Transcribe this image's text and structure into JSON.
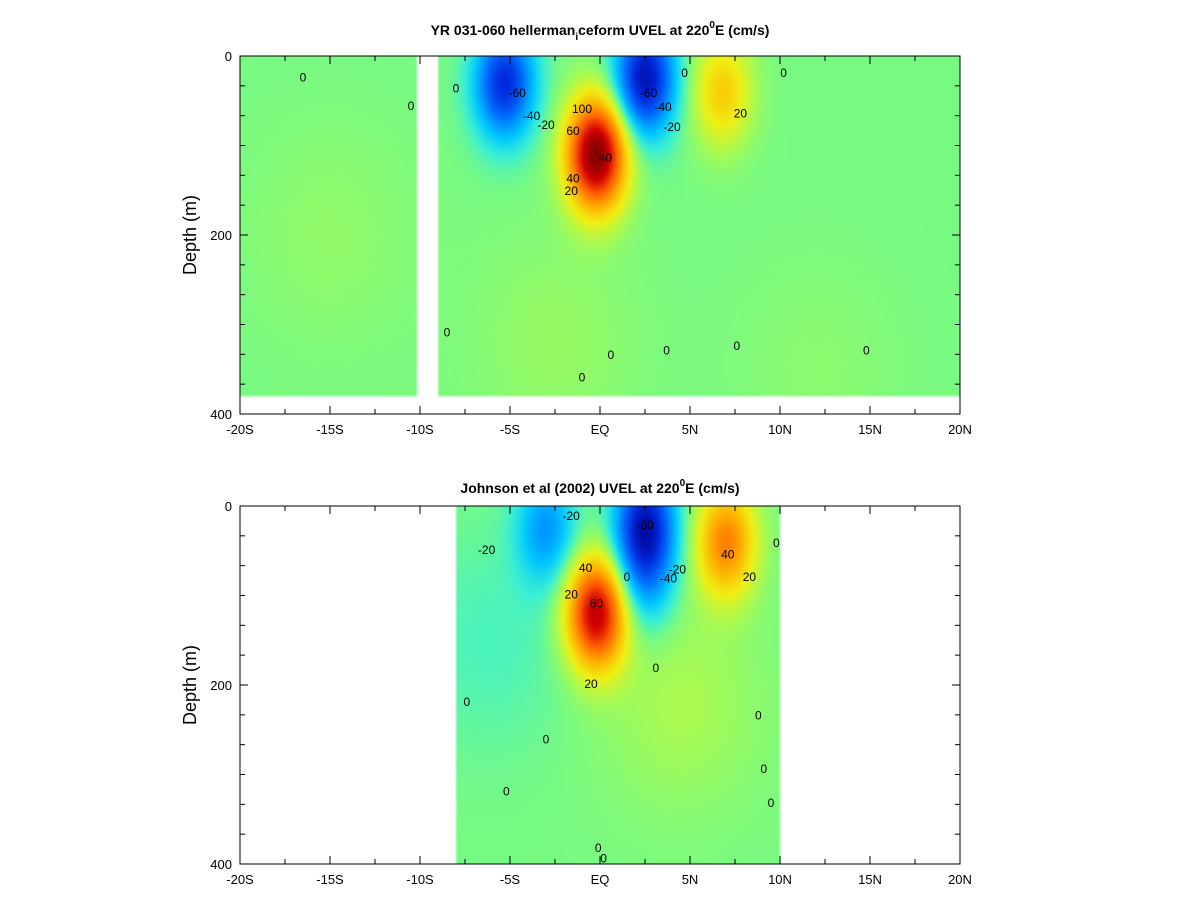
{
  "chart_data": [
    {
      "type": "heatmap",
      "title_main": "YR 031-060 hellerman",
      "title_sub": "i",
      "title_rest": "ceform UVEL at 220",
      "title_sup": "0",
      "title_end": "E (cm/s)",
      "ylabel": "Depth (m)",
      "xlim": [
        -20,
        20
      ],
      "ylim": [
        0,
        400
      ],
      "y_inverted": true,
      "xticks": [
        -20,
        -15,
        -10,
        -5,
        0,
        5,
        10,
        15,
        20
      ],
      "xtick_labels": [
        "-20S",
        "-15S",
        "-10S",
        "-5S",
        "EQ",
        "5N",
        "10N",
        "15N",
        "20N"
      ],
      "yticks": [
        0,
        200,
        400
      ],
      "ytick_labels": [
        "0",
        "200",
        "400"
      ],
      "data_xrange": [
        -20,
        20
      ],
      "data_depth_max": 380,
      "gap_xrange": [
        -10.2,
        -9.0
      ],
      "background_value": 0,
      "features": [
        {
          "x": -5.3,
          "z": 30,
          "value": -60
        },
        {
          "x": -0.2,
          "z": 110,
          "value": 100
        },
        {
          "x": 2.5,
          "z": 25,
          "value": -70
        },
        {
          "x": 6.8,
          "z": 40,
          "value": 30
        },
        {
          "x": -15.0,
          "z": 200,
          "value": 4
        },
        {
          "x": 12.0,
          "z": 350,
          "value": 3
        },
        {
          "x": -2.5,
          "z": 320,
          "value": 5
        }
      ],
      "contour_labels": [
        {
          "x": -16.5,
          "z": 25,
          "text": "0"
        },
        {
          "x": -10.5,
          "z": 57,
          "text": "0"
        },
        {
          "x": -8.0,
          "z": 37,
          "text": "0"
        },
        {
          "x": -4.6,
          "z": 42,
          "text": "-60"
        },
        {
          "x": -3.8,
          "z": 68,
          "text": "-40"
        },
        {
          "x": -3.0,
          "z": 78,
          "text": "-20"
        },
        {
          "x": -1.5,
          "z": 85,
          "text": "60"
        },
        {
          "x": -1.0,
          "z": 60,
          "text": "100"
        },
        {
          "x": 0.3,
          "z": 115,
          "text": "40"
        },
        {
          "x": -1.6,
          "z": 152,
          "text": "20"
        },
        {
          "x": -1.5,
          "z": 138,
          "text": "40"
        },
        {
          "x": 2.7,
          "z": 42,
          "text": "-60"
        },
        {
          "x": 3.5,
          "z": 58,
          "text": "-40"
        },
        {
          "x": 4.0,
          "z": 80,
          "text": "-20"
        },
        {
          "x": 4.7,
          "z": 20,
          "text": "0"
        },
        {
          "x": 7.8,
          "z": 65,
          "text": "20"
        },
        {
          "x": 10.2,
          "z": 20,
          "text": "0"
        },
        {
          "x": -8.5,
          "z": 310,
          "text": "0"
        },
        {
          "x": 0.6,
          "z": 335,
          "text": "0"
        },
        {
          "x": 3.7,
          "z": 330,
          "text": "0"
        },
        {
          "x": 7.6,
          "z": 325,
          "text": "0"
        },
        {
          "x": 14.8,
          "z": 330,
          "text": "0"
        },
        {
          "x": -1.0,
          "z": 360,
          "text": "0"
        }
      ]
    },
    {
      "type": "heatmap",
      "title_main": "Johnson et al (2002) UVEL at 220",
      "title_sub": "",
      "title_rest": "",
      "title_sup": "0",
      "title_end": "E (cm/s)",
      "ylabel": "Depth (m)",
      "xlim": [
        -20,
        20
      ],
      "ylim": [
        0,
        400
      ],
      "y_inverted": true,
      "xticks": [
        -20,
        -15,
        -10,
        -5,
        0,
        5,
        10,
        15,
        20
      ],
      "xtick_labels": [
        "-20S",
        "-15S",
        "-10S",
        "-5S",
        "EQ",
        "5N",
        "10N",
        "15N",
        "20N"
      ],
      "yticks": [
        0,
        200,
        400
      ],
      "ytick_labels": [
        "0",
        "200",
        "400"
      ],
      "data_xrange": [
        -8,
        10
      ],
      "data_depth_max": 400,
      "gap_xrange": null,
      "background_value": 0,
      "features": [
        {
          "x": -3.0,
          "z": 25,
          "value": -30
        },
        {
          "x": -0.2,
          "z": 120,
          "value": 85
        },
        {
          "x": 2.5,
          "z": 20,
          "value": -65
        },
        {
          "x": 7.0,
          "z": 40,
          "value": 50
        },
        {
          "x": 2.5,
          "z": 80,
          "value": -25
        },
        {
          "x": 4.5,
          "z": 220,
          "value": 8
        },
        {
          "x": -6.0,
          "z": 150,
          "value": -6
        }
      ],
      "contour_labels": [
        {
          "x": -1.6,
          "z": 12,
          "text": "-20"
        },
        {
          "x": -6.3,
          "z": 50,
          "text": "-20"
        },
        {
          "x": 2.5,
          "z": 22,
          "text": "-60"
        },
        {
          "x": 4.3,
          "z": 72,
          "text": "-20"
        },
        {
          "x": 3.8,
          "z": 82,
          "text": "-40"
        },
        {
          "x": 1.5,
          "z": 80,
          "text": "0"
        },
        {
          "x": -1.6,
          "z": 100,
          "text": "20"
        },
        {
          "x": -0.8,
          "z": 70,
          "text": "40"
        },
        {
          "x": -0.2,
          "z": 110,
          "text": "60"
        },
        {
          "x": -0.5,
          "z": 200,
          "text": "20"
        },
        {
          "x": 7.1,
          "z": 55,
          "text": "40"
        },
        {
          "x": 8.3,
          "z": 80,
          "text": "20"
        },
        {
          "x": 9.8,
          "z": 42,
          "text": "0"
        },
        {
          "x": -7.4,
          "z": 220,
          "text": "0"
        },
        {
          "x": -5.2,
          "z": 320,
          "text": "0"
        },
        {
          "x": -3.0,
          "z": 262,
          "text": "0"
        },
        {
          "x": 3.1,
          "z": 182,
          "text": "0"
        },
        {
          "x": 8.8,
          "z": 235,
          "text": "0"
        },
        {
          "x": 9.1,
          "z": 295,
          "text": "0"
        },
        {
          "x": 9.5,
          "z": 333,
          "text": "0"
        },
        {
          "x": -0.1,
          "z": 383,
          "text": "0"
        },
        {
          "x": 0.2,
          "z": 395,
          "text": "0"
        }
      ]
    }
  ]
}
